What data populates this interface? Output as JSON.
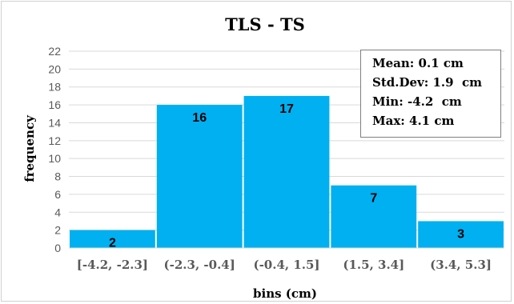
{
  "chart_data": {
    "type": "bar",
    "title": "TLS - TS",
    "xlabel": "bins (cm)",
    "ylabel": "frequency",
    "categories": [
      "[-4.2, -2.3]",
      "(-2.3, -0.4]",
      "(-0.4, 1.5]",
      "(1.5, 3.4]",
      "(3.4, 5.3]"
    ],
    "values": [
      2,
      16,
      17,
      7,
      3
    ],
    "ylim": [
      0,
      22
    ],
    "yticks": [
      0,
      2,
      4,
      6,
      8,
      10,
      12,
      14,
      16,
      18,
      20,
      22
    ],
    "grid": true,
    "bar_color": "#00b0f0",
    "grid_color": "#d9d9d9",
    "stats": [
      "Mean: 0.1 cm",
      "Std.Dev: 1.9  cm",
      "Min: -4.2  cm",
      "Max: 4.1 cm"
    ],
    "stats_placement": "top-right"
  }
}
